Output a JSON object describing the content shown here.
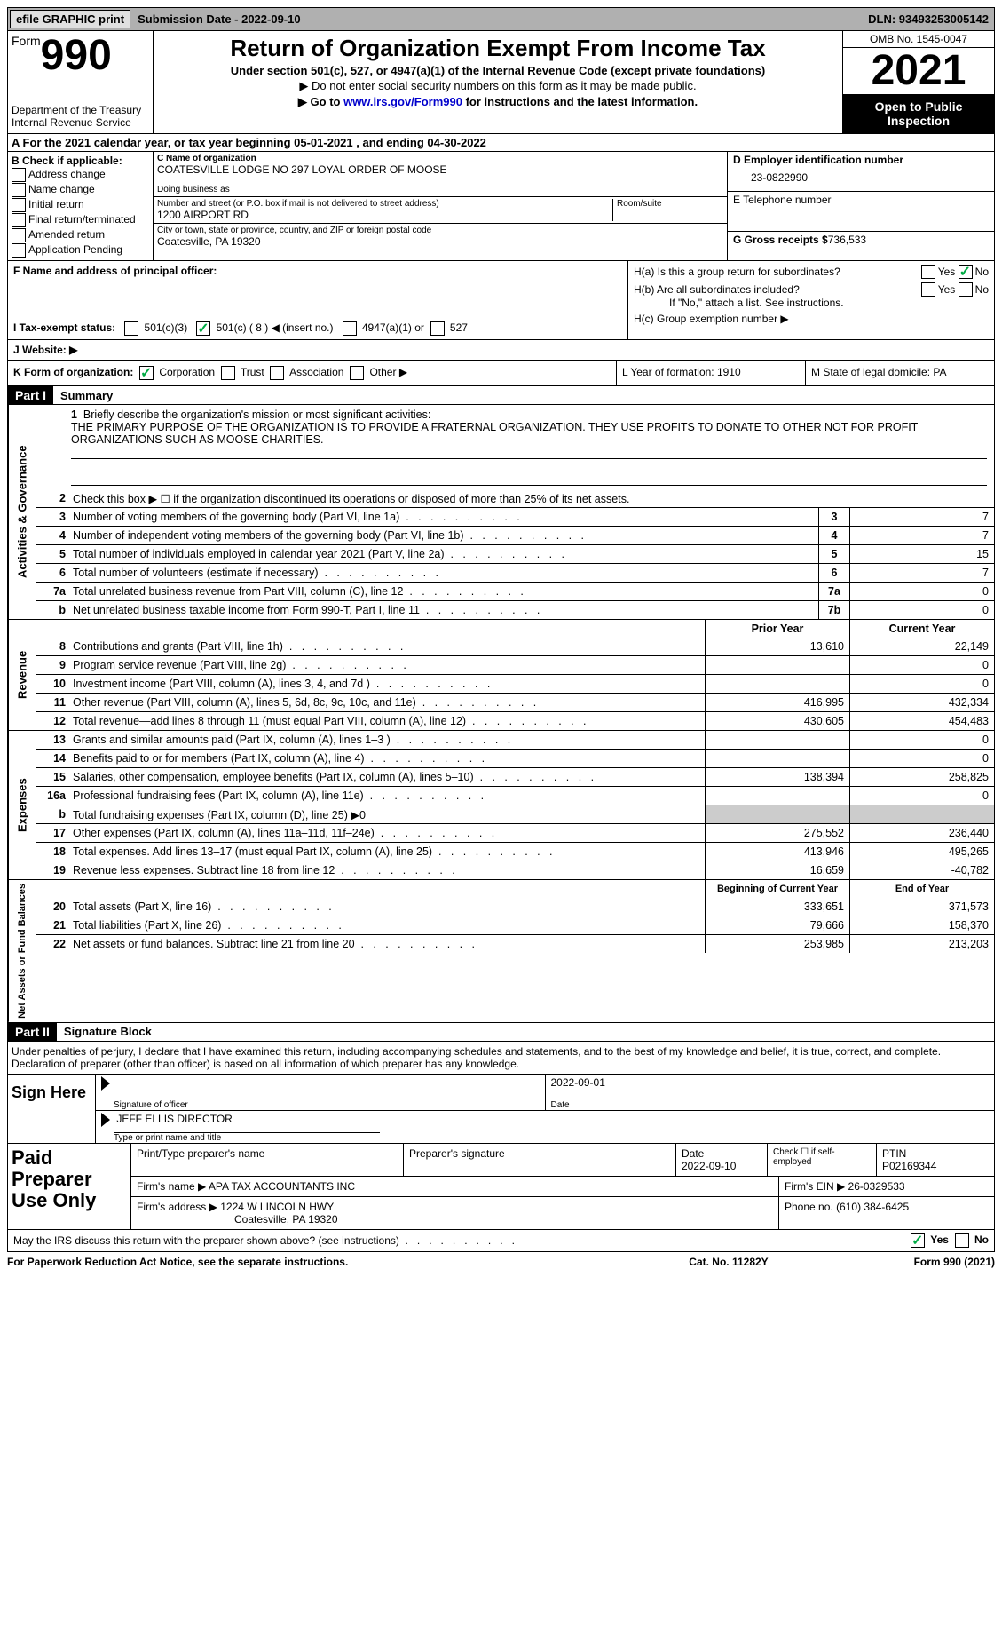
{
  "topbar": {
    "efile": "efile GRAPHIC print",
    "submission": "Submission Date - 2022-09-10",
    "dln": "DLN: 93493253005142"
  },
  "header": {
    "form_prefix": "Form",
    "form_number": "990",
    "dept": "Department of the Treasury",
    "irs": "Internal Revenue Service",
    "title": "Return of Organization Exempt From Income Tax",
    "sub1": "Under section 501(c), 527, or 4947(a)(1) of the Internal Revenue Code (except private foundations)",
    "sub2": "▶ Do not enter social security numbers on this form as it may be made public.",
    "sub3_pre": "▶ Go to ",
    "sub3_link": "www.irs.gov/Form990",
    "sub3_post": " for instructions and the latest information.",
    "omb": "OMB No. 1545-0047",
    "year": "2021",
    "open": "Open to Public Inspection"
  },
  "row_a": "A For the 2021 calendar year, or tax year beginning 05-01-2021   , and ending 04-30-2022",
  "section_b": {
    "label": "B Check if applicable:",
    "opts": [
      "Address change",
      "Name change",
      "Initial return",
      "Final return/terminated",
      "Amended return",
      "Application Pending"
    ]
  },
  "section_c": {
    "name_label": "C Name of organization",
    "name": "COATESVILLE LODGE NO 297 LOYAL ORDER OF MOOSE",
    "dba_label": "Doing business as",
    "addr_label": "Number and street (or P.O. box if mail is not delivered to street address)",
    "room_label": "Room/suite",
    "addr": "1200 AIRPORT RD",
    "city_label": "City or town, state or province, country, and ZIP or foreign postal code",
    "city": "Coatesville, PA  19320"
  },
  "section_d": {
    "ein_label": "D Employer identification number",
    "ein": "23-0822990",
    "tel_label": "E Telephone number",
    "gross_label": "G Gross receipts $",
    "gross": "736,533"
  },
  "section_f": {
    "label": "F  Name and address of principal officer:"
  },
  "section_h": {
    "ha": "H(a)  Is this a group return for subordinates?",
    "hb": "H(b)  Are all subordinates included?",
    "hb_note": "If \"No,\" attach a list. See instructions.",
    "hc": "H(c)  Group exemption number ▶",
    "yes": "Yes",
    "no": "No"
  },
  "section_i": {
    "label": "I  Tax-exempt status:",
    "o1": "501(c)(3)",
    "o2": "501(c) ( 8 ) ◀ (insert no.)",
    "o3": "4947(a)(1) or",
    "o4": "527"
  },
  "section_j": "J  Website: ▶",
  "section_k": {
    "label": "K Form of organization:",
    "corp": "Corporation",
    "trust": "Trust",
    "assoc": "Association",
    "other": "Other ▶",
    "l": "L Year of formation: 1910",
    "m": "M State of legal domicile: PA"
  },
  "part1": {
    "header": "Part I",
    "title": "Summary"
  },
  "mission": {
    "label": "Briefly describe the organization's mission or most significant activities:",
    "text": "THE PRIMARY PURPOSE OF THE ORGANIZATION IS TO PROVIDE A FRATERNAL ORGANIZATION. THEY USE PROFITS TO DONATE TO OTHER NOT FOR PROFIT ORGANIZATIONS SUCH AS MOOSE CHARITIES."
  },
  "activities": {
    "tab": "Activities & Governance",
    "rows": [
      {
        "n": "2",
        "l": "Check this box ▶ ☐ if the organization discontinued its operations or disposed of more than 25% of its net assets."
      },
      {
        "n": "3",
        "l": "Number of voting members of the governing body (Part VI, line 1a)",
        "box": "3",
        "v": "7"
      },
      {
        "n": "4",
        "l": "Number of independent voting members of the governing body (Part VI, line 1b)",
        "box": "4",
        "v": "7"
      },
      {
        "n": "5",
        "l": "Total number of individuals employed in calendar year 2021 (Part V, line 2a)",
        "box": "5",
        "v": "15"
      },
      {
        "n": "6",
        "l": "Total number of volunteers (estimate if necessary)",
        "box": "6",
        "v": "7"
      },
      {
        "n": "7a",
        "l": "Total unrelated business revenue from Part VIII, column (C), line 12",
        "box": "7a",
        "v": "0"
      },
      {
        "n": "b",
        "l": "Net unrelated business taxable income from Form 990-T, Part I, line 11",
        "box": "7b",
        "v": "0"
      }
    ]
  },
  "revenue": {
    "tab": "Revenue",
    "head_prior": "Prior Year",
    "head_current": "Current Year",
    "rows": [
      {
        "n": "8",
        "l": "Contributions and grants (Part VIII, line 1h)",
        "p": "13,610",
        "c": "22,149"
      },
      {
        "n": "9",
        "l": "Program service revenue (Part VIII, line 2g)",
        "p": "",
        "c": "0"
      },
      {
        "n": "10",
        "l": "Investment income (Part VIII, column (A), lines 3, 4, and 7d )",
        "p": "",
        "c": "0"
      },
      {
        "n": "11",
        "l": "Other revenue (Part VIII, column (A), lines 5, 6d, 8c, 9c, 10c, and 11e)",
        "p": "416,995",
        "c": "432,334"
      },
      {
        "n": "12",
        "l": "Total revenue—add lines 8 through 11 (must equal Part VIII, column (A), line 12)",
        "p": "430,605",
        "c": "454,483"
      }
    ]
  },
  "expenses": {
    "tab": "Expenses",
    "rows": [
      {
        "n": "13",
        "l": "Grants and similar amounts paid (Part IX, column (A), lines 1–3 )",
        "p": "",
        "c": "0"
      },
      {
        "n": "14",
        "l": "Benefits paid to or for members (Part IX, column (A), line 4)",
        "p": "",
        "c": "0"
      },
      {
        "n": "15",
        "l": "Salaries, other compensation, employee benefits (Part IX, column (A), lines 5–10)",
        "p": "138,394",
        "c": "258,825"
      },
      {
        "n": "16a",
        "l": "Professional fundraising fees (Part IX, column (A), line 11e)",
        "p": "",
        "c": "0"
      },
      {
        "n": "b",
        "l": "Total fundraising expenses (Part IX, column (D), line 25) ▶0",
        "grey": true
      },
      {
        "n": "17",
        "l": "Other expenses (Part IX, column (A), lines 11a–11d, 11f–24e)",
        "p": "275,552",
        "c": "236,440"
      },
      {
        "n": "18",
        "l": "Total expenses. Add lines 13–17 (must equal Part IX, column (A), line 25)",
        "p": "413,946",
        "c": "495,265"
      },
      {
        "n": "19",
        "l": "Revenue less expenses. Subtract line 18 from line 12",
        "p": "16,659",
        "c": "-40,782"
      }
    ]
  },
  "netassets": {
    "tab": "Net Assets or Fund Balances",
    "head_begin": "Beginning of Current Year",
    "head_end": "End of Year",
    "rows": [
      {
        "n": "20",
        "l": "Total assets (Part X, line 16)",
        "p": "333,651",
        "c": "371,573"
      },
      {
        "n": "21",
        "l": "Total liabilities (Part X, line 26)",
        "p": "79,666",
        "c": "158,370"
      },
      {
        "n": "22",
        "l": "Net assets or fund balances. Subtract line 21 from line 20",
        "p": "253,985",
        "c": "213,203"
      }
    ]
  },
  "part2": {
    "header": "Part II",
    "title": "Signature Block",
    "decl": "Under penalties of perjury, I declare that I have examined this return, including accompanying schedules and statements, and to the best of my knowledge and belief, it is true, correct, and complete. Declaration of preparer (other than officer) is based on all information of which preparer has any knowledge."
  },
  "sign": {
    "label": "Sign Here",
    "sig_label": "Signature of officer",
    "date": "2022-09-01",
    "date_label": "Date",
    "name": "JEFF ELLIS  DIRECTOR",
    "name_label": "Type or print name and title"
  },
  "paid": {
    "label": "Paid Preparer Use Only",
    "h1": "Print/Type preparer's name",
    "h2": "Preparer's signature",
    "h3_label": "Date",
    "h3": "2022-09-10",
    "h4": "Check ☐ if self-employed",
    "h5_label": "PTIN",
    "h5": "P02169344",
    "firm_label": "Firm's name    ▶",
    "firm": "APA TAX ACCOUNTANTS INC",
    "ein_label": "Firm's EIN ▶",
    "ein": "26-0329533",
    "addr_label": "Firm's address ▶",
    "addr1": "1224 W LINCOLN HWY",
    "addr2": "Coatesville, PA  19320",
    "phone_label": "Phone no.",
    "phone": "(610) 384-6425"
  },
  "discuss": {
    "label": "May the IRS discuss this return with the preparer shown above? (see instructions)",
    "yes": "Yes",
    "no": "No"
  },
  "footer": {
    "left": "For Paperwork Reduction Act Notice, see the separate instructions.",
    "mid": "Cat. No. 11282Y",
    "right": "Form 990 (2021)"
  }
}
